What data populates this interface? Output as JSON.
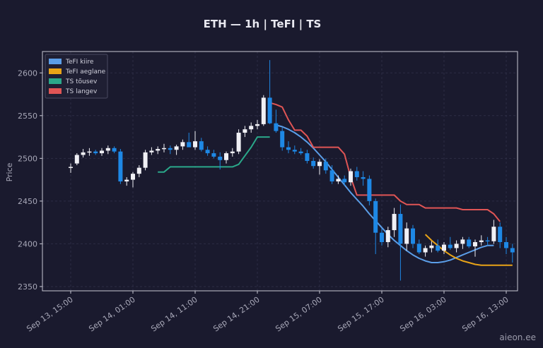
{
  "chart_data": {
    "type": "candlestick",
    "title": "ETH — 1h  |  TeFI  |  TS",
    "ylabel": "Price",
    "ylim": [
      2345,
      2625
    ],
    "yticks": [
      2350,
      2400,
      2450,
      2500,
      2550,
      2600
    ],
    "x_tick_labels": [
      {
        "i": 0,
        "label": "Sep 13, 15:00"
      },
      {
        "i": 10,
        "label": "Sep 14, 01:00"
      },
      {
        "i": 20,
        "label": "Sep 14, 11:00"
      },
      {
        "i": 30,
        "label": "Sep 14, 21:00"
      },
      {
        "i": 40,
        "label": "Sep 15, 07:00"
      },
      {
        "i": 50,
        "label": "Sep 15, 17:00"
      },
      {
        "i": 60,
        "label": "Sep 16, 03:00"
      },
      {
        "i": 70,
        "label": "Sep 16, 13:00"
      }
    ],
    "grid": true,
    "legend_position": "top-left",
    "colors": {
      "background": "#1a1a2e",
      "up_candle": "#f0f0f5",
      "down_candle": "#1e88e5",
      "tefi_fast": "#5b9ee8",
      "tefi_slow": "#e8a317",
      "ts_up": "#2aa88a",
      "ts_down": "#e05555",
      "grid": "#2c2c44",
      "frame": "#c8c8d4"
    },
    "legend": [
      {
        "key": "tefi_fast",
        "label": "TeFI kiire"
      },
      {
        "key": "tefi_slow",
        "label": "TeFI aeglane"
      },
      {
        "key": "ts_up",
        "label": "TS tõusev"
      },
      {
        "key": "ts_down",
        "label": "TS langev"
      }
    ],
    "candles": [
      [
        2490,
        2494,
        2483,
        2490
      ],
      [
        2494,
        2506,
        2492,
        2504
      ],
      [
        2504,
        2511,
        2501,
        2507
      ],
      [
        2507,
        2512,
        2503,
        2508
      ],
      [
        2508,
        2510,
        2504,
        2506
      ],
      [
        2506,
        2512,
        2503,
        2509
      ],
      [
        2509,
        2515,
        2505,
        2512
      ],
      [
        2512,
        2514,
        2506,
        2508
      ],
      [
        2508,
        2511,
        2470,
        2473
      ],
      [
        2473,
        2478,
        2468,
        2475
      ],
      [
        2475,
        2484,
        2466,
        2482
      ],
      [
        2482,
        2492,
        2478,
        2489
      ],
      [
        2489,
        2510,
        2486,
        2507
      ],
      [
        2507,
        2513,
        2504,
        2509
      ],
      [
        2509,
        2514,
        2505,
        2511
      ],
      [
        2511,
        2517,
        2507,
        2512
      ],
      [
        2512,
        2515,
        2505,
        2510
      ],
      [
        2510,
        2516,
        2504,
        2514
      ],
      [
        2514,
        2522,
        2510,
        2519
      ],
      [
        2519,
        2530,
        2514,
        2513
      ],
      [
        2513,
        2532,
        2510,
        2520
      ],
      [
        2520,
        2524,
        2508,
        2510
      ],
      [
        2510,
        2514,
        2503,
        2506
      ],
      [
        2506,
        2510,
        2500,
        2502
      ],
      [
        2502,
        2507,
        2487,
        2498
      ],
      [
        2498,
        2508,
        2494,
        2506
      ],
      [
        2506,
        2512,
        2502,
        2508
      ],
      [
        2508,
        2534,
        2505,
        2530
      ],
      [
        2530,
        2538,
        2525,
        2534
      ],
      [
        2534,
        2542,
        2530,
        2538
      ],
      [
        2538,
        2545,
        2534,
        2540
      ],
      [
        2540,
        2574,
        2538,
        2571
      ],
      [
        2571,
        2615,
        2540,
        2541
      ],
      [
        2541,
        2557,
        2530,
        2532
      ],
      [
        2532,
        2536,
        2509,
        2513
      ],
      [
        2513,
        2520,
        2506,
        2510
      ],
      [
        2510,
        2515,
        2505,
        2508
      ],
      [
        2508,
        2512,
        2504,
        2506
      ],
      [
        2506,
        2510,
        2494,
        2497
      ],
      [
        2497,
        2501,
        2488,
        2491
      ],
      [
        2491,
        2499,
        2481,
        2496
      ],
      [
        2496,
        2500,
        2482,
        2486
      ],
      [
        2486,
        2492,
        2470,
        2473
      ],
      [
        2473,
        2480,
        2470,
        2476
      ],
      [
        2476,
        2480,
        2468,
        2472
      ],
      [
        2472,
        2488,
        2468,
        2485
      ],
      [
        2485,
        2490,
        2474,
        2478
      ],
      [
        2478,
        2485,
        2468,
        2476
      ],
      [
        2476,
        2480,
        2445,
        2450
      ],
      [
        2450,
        2453,
        2388,
        2413
      ],
      [
        2413,
        2418,
        2398,
        2402
      ],
      [
        2402,
        2420,
        2396,
        2416
      ],
      [
        2416,
        2442,
        2408,
        2435
      ],
      [
        2435,
        2446,
        2357,
        2400
      ],
      [
        2400,
        2425,
        2392,
        2418
      ],
      [
        2418,
        2422,
        2395,
        2400
      ],
      [
        2400,
        2405,
        2388,
        2390
      ],
      [
        2390,
        2398,
        2385,
        2395
      ],
      [
        2395,
        2403,
        2390,
        2398
      ],
      [
        2398,
        2405,
        2390,
        2392
      ],
      [
        2392,
        2402,
        2388,
        2399
      ],
      [
        2399,
        2408,
        2393,
        2395
      ],
      [
        2395,
        2404,
        2390,
        2400
      ],
      [
        2400,
        2408,
        2394,
        2405
      ],
      [
        2405,
        2408,
        2395,
        2397
      ],
      [
        2397,
        2405,
        2385,
        2402
      ],
      [
        2402,
        2410,
        2398,
        2404
      ],
      [
        2404,
        2408,
        2398,
        2403
      ],
      [
        2403,
        2428,
        2400,
        2420
      ],
      [
        2420,
        2425,
        2395,
        2402
      ],
      [
        2402,
        2408,
        2388,
        2395
      ],
      [
        2395,
        2400,
        2378,
        2390
      ]
    ],
    "series": [
      {
        "key": "tefi_fast",
        "name": "TeFI kiire",
        "start_index": 33,
        "values": [
          2539,
          2537,
          2534,
          2530,
          2525,
          2519,
          2512,
          2504,
          2496,
          2487,
          2478,
          2469,
          2460,
          2452,
          2444,
          2435,
          2427,
          2419,
          2411,
          2404,
          2398,
          2392,
          2387,
          2383,
          2380,
          2378,
          2378,
          2379,
          2381,
          2384,
          2387,
          2390,
          2393,
          2396,
          2398,
          2398
        ]
      },
      {
        "key": "tefi_slow",
        "name": "TeFI aeglane",
        "start_index": 57,
        "values": [
          2411,
          2404,
          2398,
          2392,
          2387,
          2383,
          2380,
          2378,
          2376,
          2375,
          2375,
          2375,
          2375,
          2375,
          2375
        ]
      },
      {
        "key": "ts_up",
        "name": "TS tõusev",
        "start_index": 14,
        "values": [
          2484,
          2484,
          2490,
          2490,
          2490,
          2490,
          2490,
          2490,
          2490,
          2490,
          2490,
          2490,
          2490,
          2493,
          2503,
          2513,
          2525,
          2525,
          2525
        ]
      },
      {
        "key": "ts_down",
        "name": "TS langev",
        "start_index": 32,
        "values": [
          2565,
          2563,
          2560,
          2545,
          2533,
          2533,
          2526,
          2513,
          2513,
          2513,
          2513,
          2513,
          2505,
          2478,
          2457,
          2457,
          2457,
          2457,
          2457,
          2457,
          2457,
          2450,
          2446,
          2446,
          2446,
          2442,
          2442,
          2442,
          2442,
          2442,
          2442,
          2440,
          2440,
          2440,
          2440,
          2440,
          2435,
          2426
        ]
      }
    ]
  },
  "watermark": "aieon.ee"
}
